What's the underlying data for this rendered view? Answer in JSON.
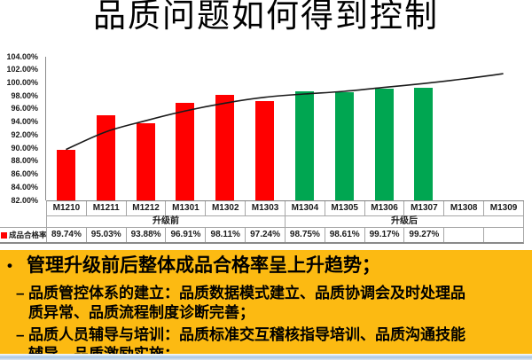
{
  "title": "品质问题如何得到控制",
  "chart_data": {
    "type": "bar",
    "legend_label": "成品合格率",
    "legend_color": "#FF0000",
    "categories": [
      "M1210",
      "M1211",
      "M1212",
      "M1301",
      "M1302",
      "M1303",
      "M1304",
      "M1305",
      "M1306",
      "M1307",
      "M1308",
      "M1309"
    ],
    "values": [
      89.74,
      95.03,
      93.88,
      96.91,
      98.11,
      97.24,
      98.75,
      98.61,
      99.17,
      99.27,
      null,
      null
    ],
    "display_values": [
      "89.74%",
      "95.03%",
      "93.88%",
      "96.91%",
      "98.11%",
      "97.24%",
      "98.75%",
      "98.61%",
      "99.17%",
      "99.27%",
      "",
      ""
    ],
    "trend_values": [
      89.8,
      92.5,
      94.2,
      95.7,
      96.9,
      97.8,
      98.3,
      98.7,
      99.3,
      99.9,
      100.6,
      101.4
    ],
    "ylim": [
      82,
      104
    ],
    "ytick_step": 2,
    "ytick_format": "0.00%",
    "grid": false,
    "legend_position": "table-left",
    "group_bands": [
      {
        "label": "升级前",
        "start": 0,
        "count": 6,
        "bar_color": "#FF0000"
      },
      {
        "label": "升级后",
        "start": 6,
        "count": 6,
        "bar_color": "#00A651"
      }
    ],
    "trend_color": "#1a1a1a"
  },
  "notes": {
    "bullet_char": "•",
    "dash_char": "–",
    "main": "管理升级前后整体成品合格率呈上升趋势；",
    "subs": [
      "品质管控体系的建立：品质数据模式建立、品质协调会及时处理品\n质异常、品质流程制度诊断完善；",
      "品质人员辅导与培训：品质标准交互稽核指导培训、品质沟通技能\n辅导、品质激励实施；"
    ]
  }
}
